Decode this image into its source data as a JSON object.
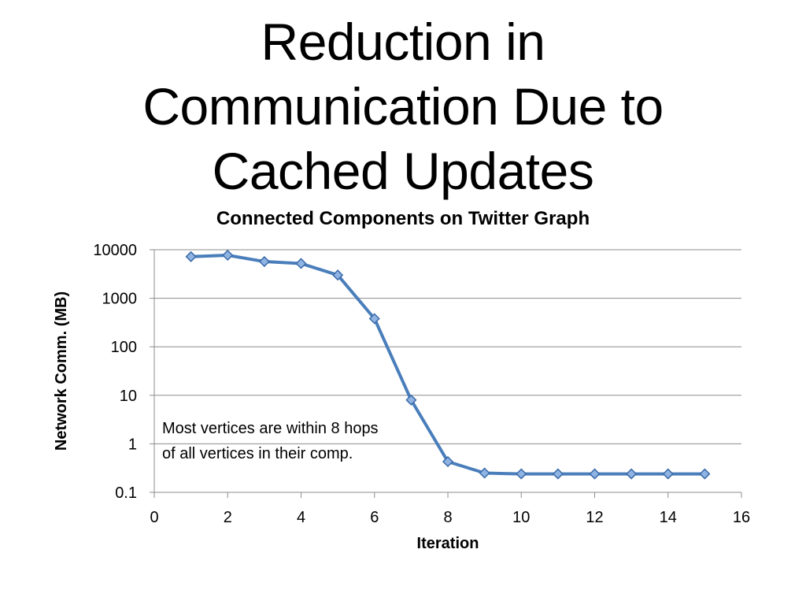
{
  "slide": {
    "title_lines": [
      "Reduction in",
      "Communication Due to",
      "Cached Updates"
    ]
  },
  "chart_data": {
    "type": "line",
    "title": "Connected Components on Twitter Graph",
    "xlabel": "Iteration",
    "ylabel": "Network Comm. (MB)",
    "y_scale": "log",
    "xlim": [
      0,
      16
    ],
    "ylim": [
      0.1,
      10000
    ],
    "x_ticks": [
      "0",
      "2",
      "4",
      "6",
      "8",
      "10",
      "12",
      "14",
      "16"
    ],
    "y_ticks": [
      "0.1",
      "1",
      "10",
      "100",
      "1000",
      "10000"
    ],
    "grid": "horizontal",
    "series": [
      {
        "x": [
          1,
          2,
          3,
          4,
          5,
          6,
          7,
          8,
          9,
          10,
          11,
          12,
          13,
          14,
          15
        ],
        "values": [
          7200,
          7700,
          5700,
          5200,
          3000,
          380,
          8,
          0.43,
          0.25,
          0.24,
          0.24,
          0.24,
          0.24,
          0.24,
          0.24
        ]
      }
    ],
    "annotation": {
      "lines": [
        "Most vertices are within 8 hops",
        "of all vertices in their comp."
      ]
    },
    "colors": {
      "line": "#4a7ebb",
      "marker_fill": "#8fb3e2",
      "marker_stroke": "#3a6aa8",
      "grid": "#8c8c8c"
    }
  }
}
